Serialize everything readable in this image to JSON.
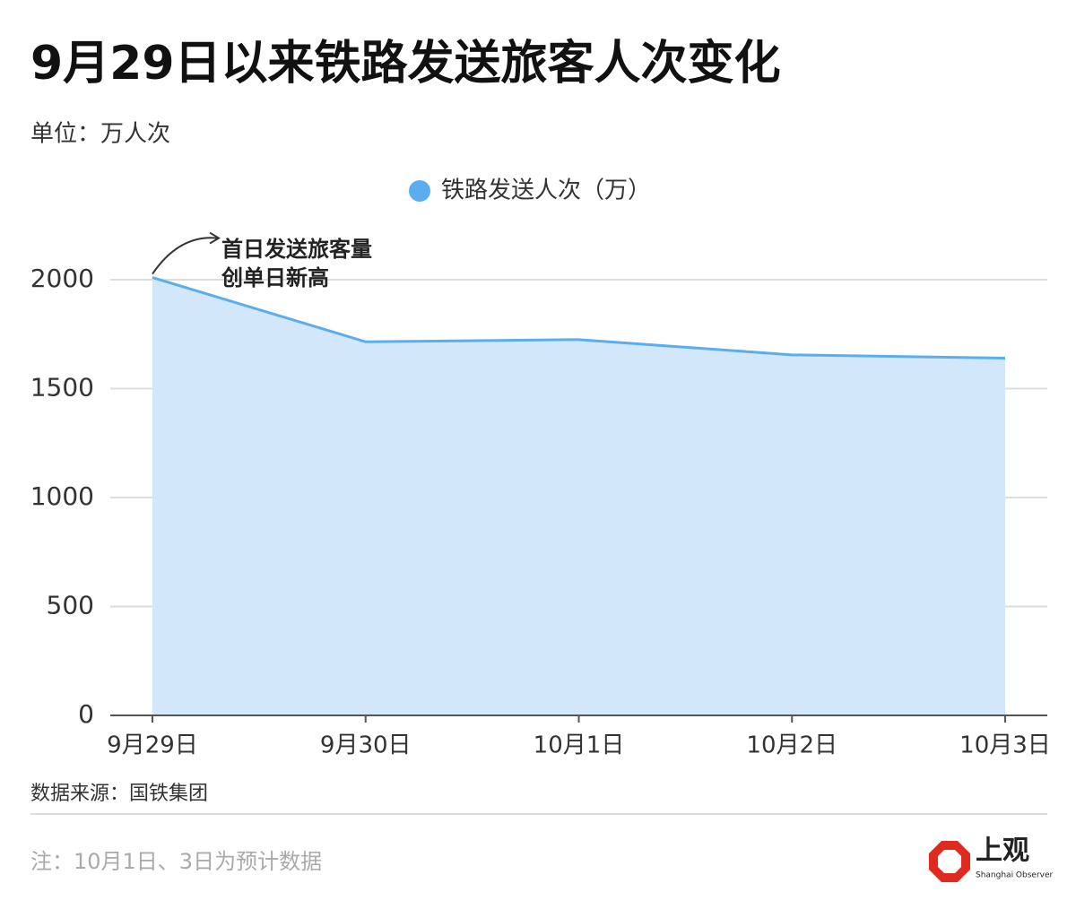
{
  "chart_data": {
    "type": "area",
    "title": "9月29日以来铁路发送旅客人次变化",
    "subtitle": "单位：万人次",
    "categories": [
      "9月29日",
      "9月30日",
      "10月1日",
      "10月2日",
      "10月3日"
    ],
    "series": [
      {
        "name": "铁路发送人次（万）",
        "color": "#5aaef0",
        "fill": "#d2e7f9",
        "values": [
          2010,
          1715,
          1725,
          1655,
          1640
        ]
      }
    ],
    "ylim": [
      0,
      2000
    ],
    "yticks": [
      0,
      500,
      1000,
      1500,
      2000
    ],
    "grid": true,
    "legend": "top",
    "annotation": [
      "首日发送旅客量",
      "创单日新高"
    ],
    "source": "数据来源：国铁集团",
    "note": "注：10月1日、3日为预计数据",
    "logo": {
      "name": "上观",
      "subname": "Shanghai Observer"
    }
  }
}
